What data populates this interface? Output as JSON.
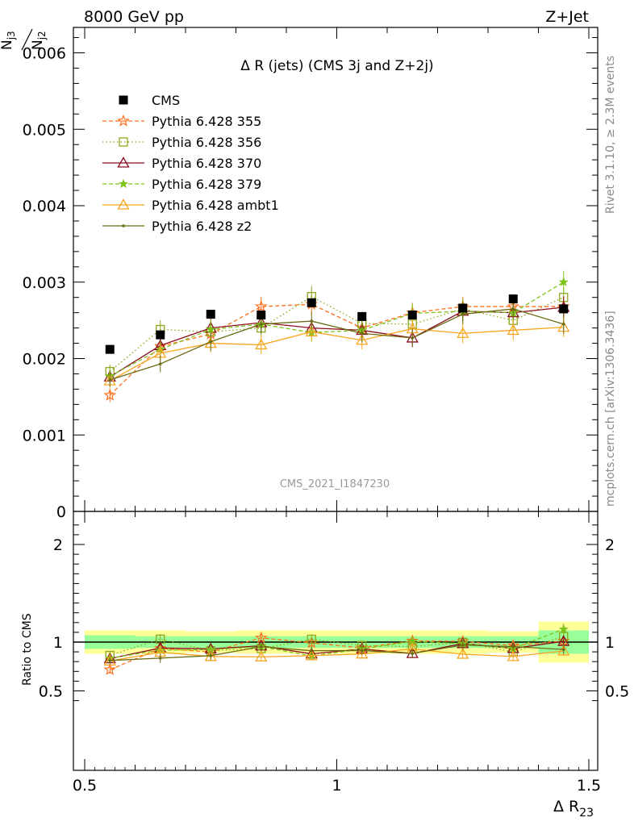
{
  "header": {
    "left": "8000 GeV pp",
    "right": "Z+Jet"
  },
  "side_labels": {
    "rivet": "Rivet 3.1.10, ≥ 2.3M events",
    "mcplots": "mcplots.cern.ch [arXiv:1306.3436]"
  },
  "chart_data": {
    "type": "scatter",
    "title": "Δ R (jets) (CMS 3j and Z+2j)",
    "watermark": "CMS_2021_I1847230",
    "ylabel_top": "N",
    "ylabel_top_sub1": "j3",
    "ylabel_bottom": "N",
    "ylabel_bottom_sub": "j2",
    "xlabel": "Δ R",
    "xlabel_sub": "23",
    "ratio_ylabel": "Ratio to CMS",
    "xlim": [
      0.5,
      1.5
    ],
    "ylim": [
      0,
      0.0063
    ],
    "ratio_ylim": [
      0.33,
      2.33
    ],
    "x_ticks": [
      {
        "v": 0.5,
        "label": "0.5"
      },
      {
        "v": 1.0,
        "label": "1"
      },
      {
        "v": 1.5,
        "label": "1.5"
      }
    ],
    "y_ticks": [
      {
        "v": 0.0,
        "label": "0"
      },
      {
        "v": 0.001,
        "label": "0.001"
      },
      {
        "v": 0.002,
        "label": "0.002"
      },
      {
        "v": 0.003,
        "label": "0.003"
      },
      {
        "v": 0.004,
        "label": "0.004"
      },
      {
        "v": 0.005,
        "label": "0.005"
      },
      {
        "v": 0.006,
        "label": "0.006"
      }
    ],
    "ratio_ticks": [
      {
        "v": 0.5,
        "label": "0.5"
      },
      {
        "v": 1.0,
        "label": "1"
      },
      {
        "v": 2.0,
        "label": "2"
      }
    ],
    "x": [
      0.55,
      0.65,
      0.75,
      0.85,
      0.95,
      1.05,
      1.15,
      1.25,
      1.35,
      1.45
    ],
    "bins": [
      [
        0.5,
        0.6
      ],
      [
        0.6,
        0.7
      ],
      [
        0.7,
        0.8
      ],
      [
        0.8,
        0.9
      ],
      [
        0.9,
        1.0
      ],
      [
        1.0,
        1.1
      ],
      [
        1.1,
        1.2
      ],
      [
        1.2,
        1.3
      ],
      [
        1.3,
        1.4
      ],
      [
        1.4,
        1.5
      ]
    ],
    "cms": {
      "name": "CMS",
      "values": [
        0.00212,
        0.00231,
        0.00258,
        0.00257,
        0.00273,
        0.00255,
        0.00257,
        0.00266,
        0.00278,
        0.00265
      ],
      "band_inner": [
        0.07,
        0.06,
        0.06,
        0.06,
        0.06,
        0.06,
        0.06,
        0.06,
        0.06,
        0.12
      ],
      "band_outer": [
        0.12,
        0.12,
        0.11,
        0.12,
        0.12,
        0.12,
        0.12,
        0.12,
        0.11,
        0.21
      ]
    },
    "series": [
      {
        "name": "Pythia 6.428 355",
        "color": "#ff6f1f",
        "dash": "5,3",
        "marker": "star-open",
        "values": [
          0.00152,
          0.00216,
          0.00232,
          0.00268,
          0.00271,
          0.0024,
          0.0026,
          0.00268,
          0.00268,
          0.00268
        ],
        "err": [
          9e-05,
          0.00012,
          0.00012,
          0.00013,
          0.00013,
          0.00012,
          0.00013,
          0.00013,
          0.00013,
          0.00014
        ]
      },
      {
        "name": "Pythia 6.428 356",
        "color": "#8ca61c",
        "dash": "1.5,3",
        "marker": "square-open",
        "values": [
          0.00183,
          0.00238,
          0.00235,
          0.0024,
          0.00281,
          0.00246,
          0.00245,
          0.00265,
          0.0025,
          0.0028
        ],
        "err": [
          9e-05,
          0.00012,
          0.00012,
          0.00012,
          0.00014,
          0.00012,
          0.00013,
          0.00013,
          0.00013,
          0.00014
        ]
      },
      {
        "name": "Pythia 6.428 370",
        "color": "#8b0f1e",
        "dash": "",
        "marker": "triangle-open",
        "values": [
          0.00176,
          0.00217,
          0.0024,
          0.00247,
          0.0024,
          0.00237,
          0.00227,
          0.00262,
          0.0026,
          0.00267
        ],
        "err": [
          9e-05,
          0.00011,
          0.00012,
          0.00012,
          0.00012,
          0.00012,
          0.00012,
          0.00013,
          0.00013,
          0.00014
        ]
      },
      {
        "name": "Pythia 6.428 379",
        "color": "#7fc21a",
        "dash": "5,3",
        "marker": "star-filled",
        "values": [
          0.00177,
          0.00212,
          0.00238,
          0.00245,
          0.00234,
          0.00237,
          0.00259,
          0.00262,
          0.0026,
          0.003
        ],
        "err": [
          9e-05,
          0.00011,
          0.00012,
          0.00012,
          0.00012,
          0.00012,
          0.00013,
          0.00013,
          0.00013,
          0.00015
        ]
      },
      {
        "name": "Pythia 6.428 ambt1",
        "color": "#f7a520",
        "dash": "",
        "marker": "triangle-open",
        "values": [
          0.00171,
          0.00207,
          0.0022,
          0.00218,
          0.00235,
          0.00224,
          0.00239,
          0.00233,
          0.00237,
          0.00241
        ],
        "err": [
          9e-05,
          0.00011,
          0.00012,
          0.00012,
          0.00012,
          0.00012,
          0.00013,
          0.00013,
          0.00013,
          0.00013
        ]
      },
      {
        "name": "Pythia 6.428 z2",
        "color": "#6b6b12",
        "dash": "",
        "marker": "dot",
        "values": [
          0.00172,
          0.00193,
          0.00222,
          0.00245,
          0.00249,
          0.00233,
          0.00227,
          0.00258,
          0.00265,
          0.00245
        ],
        "err": [
          9e-05,
          0.00011,
          0.00012,
          0.00012,
          0.00012,
          0.00012,
          0.00012,
          0.00013,
          0.00013,
          0.00013
        ]
      }
    ]
  }
}
